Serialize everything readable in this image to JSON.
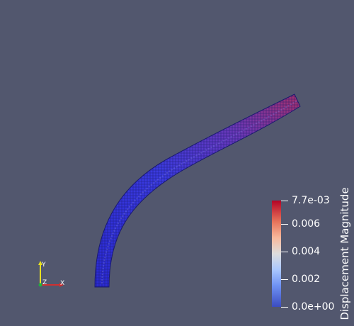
{
  "colorbar": {
    "title": "Displacement Magnitude",
    "ticks": [
      {
        "label": "7.7e-03",
        "value": 0.0077
      },
      {
        "label": "0.006",
        "value": 0.006
      },
      {
        "label": "0.004",
        "value": 0.004
      },
      {
        "label": "0.002",
        "value": 0.002
      },
      {
        "label": "0.0e+00",
        "value": 0.0
      }
    ],
    "range": [
      0.0,
      0.0077
    ]
  },
  "axes": {
    "x_label": "X",
    "y_label": "Y",
    "z_label": "Z"
  },
  "colors": {
    "background": "#52576e",
    "mesh_low": "#2b2bd6",
    "mesh_high": "#9a2a6a",
    "grid_line": "#1a1a5a"
  }
}
